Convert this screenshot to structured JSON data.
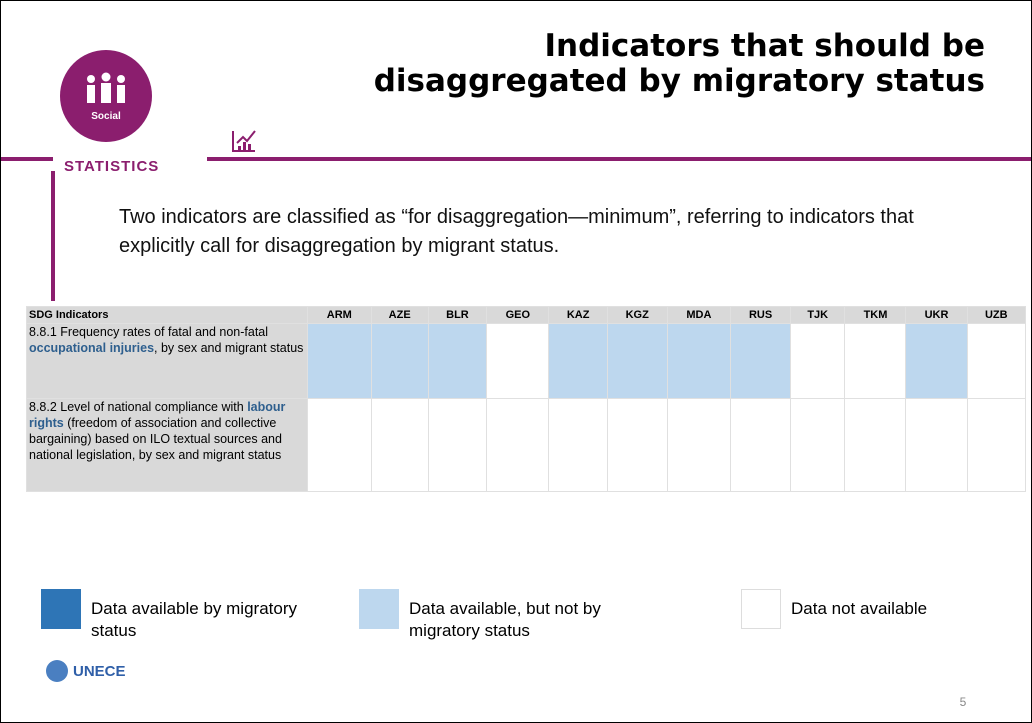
{
  "header": {
    "title": "Indicators that should be disaggregated by migratory status",
    "logo_label": "Social",
    "logo_caption": "STATISTICS"
  },
  "intro": "Two indicators are classified as “for disaggregation—minimum”, referring to indicators that explicitly call for disaggregation by migrant status.",
  "table": {
    "header": "SDG Indicators",
    "columns": [
      "ARM",
      "AZE",
      "BLR",
      "GEO",
      "KAZ",
      "KGZ",
      "MDA",
      "RUS",
      "TJK",
      "TKM",
      "UKR",
      "UZB"
    ],
    "rows": [
      {
        "before": "8.8.1 Frequency rates of fatal and non-fatal ",
        "highlight": "occupational injuries",
        "after": ", by sex and migrant status",
        "cells": [
          "#bdd7ee",
          "#bdd7ee",
          "#bdd7ee",
          "#ffffff",
          "#bdd7ee",
          "#bdd7ee",
          "#bdd7ee",
          "#bdd7ee",
          "#ffffff",
          "#ffffff",
          "#bdd7ee",
          "#ffffff"
        ]
      },
      {
        "before": "8.8.2 Level of national compliance with ",
        "highlight": "labour rights",
        "after": " (freedom of association and collective bargaining) based on ILO textual sources and national legislation, by sex and migrant status",
        "cells": [
          "#ffffff",
          "#ffffff",
          "#ffffff",
          "#ffffff",
          "#ffffff",
          "#ffffff",
          "#ffffff",
          "#ffffff",
          "#ffffff",
          "#ffffff",
          "#ffffff",
          "#ffffff"
        ]
      }
    ]
  },
  "legend": [
    {
      "label": "Data available by migratory status",
      "color": "#2e75b6"
    },
    {
      "label": "Data available, but not by migratory status",
      "color": "#bdd7ee"
    },
    {
      "label": "Data not available",
      "color": "#ffffff"
    }
  ],
  "footer": {
    "org": "UNECE",
    "page": "5"
  }
}
